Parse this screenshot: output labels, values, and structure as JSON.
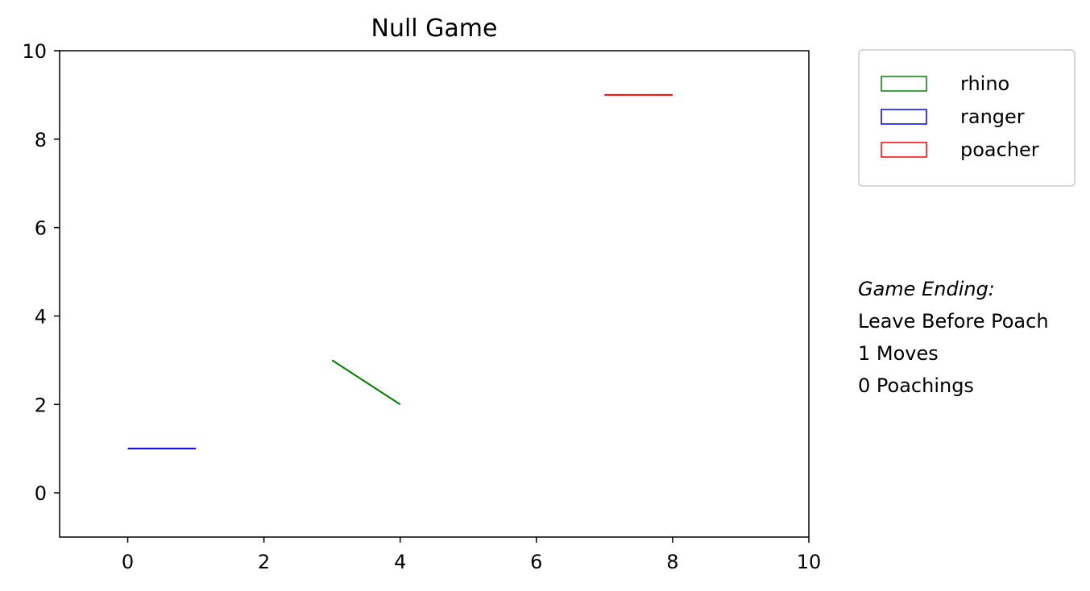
{
  "chart_data": {
    "type": "line",
    "title": "Null Game",
    "xlabel": "",
    "ylabel": "",
    "xlim": [
      -1,
      10
    ],
    "ylim": [
      -1,
      10
    ],
    "xticks": [
      0,
      2,
      4,
      6,
      8,
      10
    ],
    "yticks": [
      0,
      2,
      4,
      6,
      8,
      10
    ],
    "xtick_labels": [
      "0",
      "2",
      "4",
      "6",
      "8",
      "10"
    ],
    "ytick_labels": [
      "0",
      "2",
      "4",
      "6",
      "8",
      "10"
    ],
    "grid": false,
    "legend_position": "outside-top-right",
    "series": [
      {
        "name": "rhino",
        "color": "#008000",
        "x": [
          3,
          4
        ],
        "y": [
          3,
          2
        ]
      },
      {
        "name": "ranger",
        "color": "#0000ff",
        "x": [
          0,
          1
        ],
        "y": [
          1,
          1
        ]
      },
      {
        "name": "poacher",
        "color": "#ff0000",
        "x": [
          7,
          8
        ],
        "y": [
          9,
          9
        ]
      }
    ]
  },
  "annotations": {
    "heading": "Game Ending:",
    "ending": "Leave Before Poach",
    "moves": "1 Moves",
    "poachings": "0 Poachings"
  }
}
